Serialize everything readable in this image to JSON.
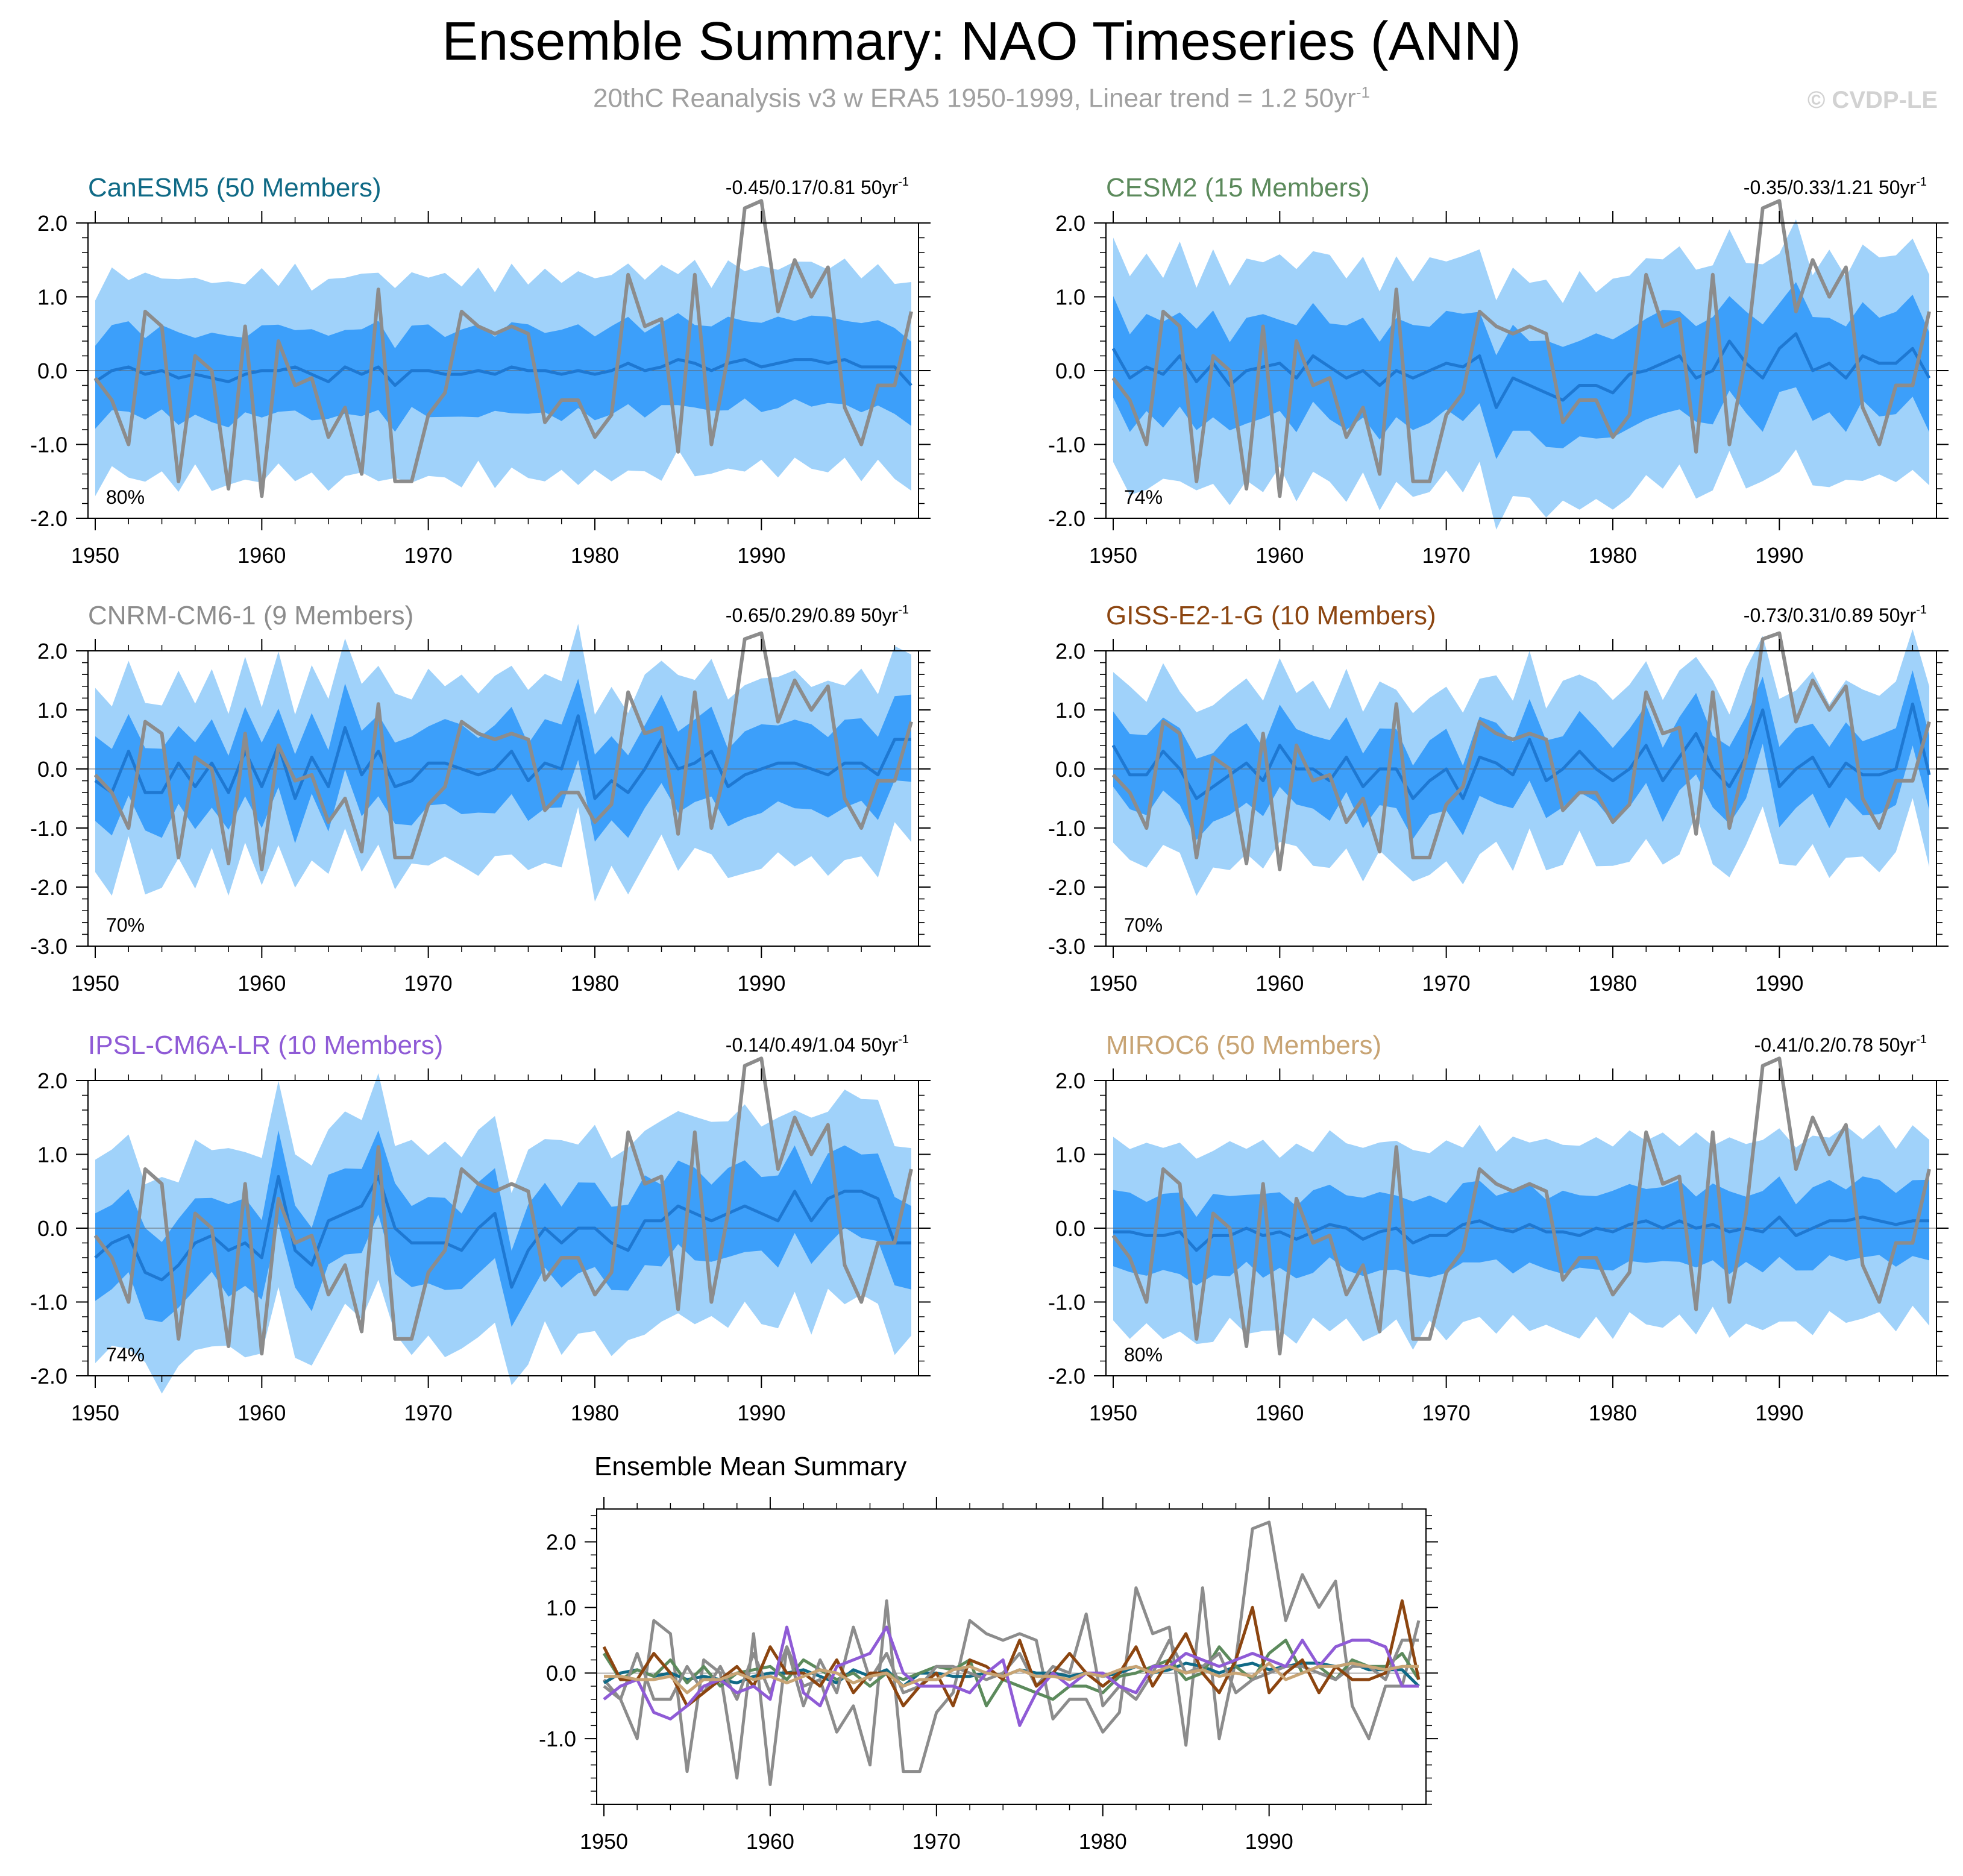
{
  "title": "Ensemble Summary: NAO Timeseries (ANN)",
  "subtitle": "20thC Reanalysis v3 w ERA5 1950-1999, Linear trend = 1.2 50yr",
  "subtitle_sup": "-1",
  "watermark": "© CVDP-LE",
  "unit_sup": "-1",
  "colors": {
    "obs": "#8c8c8c",
    "mean": "#1e78d2",
    "band_outer": "#a0d2fa",
    "band_inner": "#3c9ffa",
    "CanESM5": "#106a86",
    "CESM2": "#5c8a5c",
    "CNRM-CM6-1": "#8c8c8c",
    "GISS-E2-1-G": "#8c4510",
    "IPSL-CM6A-LR": "#8f5bd6",
    "MIROC6": "#c8a474"
  },
  "chart_data": [
    {
      "type": "line",
      "title": "CanESM5 (50 Members)",
      "model": "CanESM5",
      "trend_label": "-0.45/0.17/0.81 50yr",
      "percent_label": "80%",
      "ylim": [
        -2.0,
        2.0
      ],
      "yticks": [
        -2.0,
        -1.0,
        0.0,
        1.0,
        2.0
      ],
      "xticks": [
        1950,
        1960,
        1970,
        1980,
        1990
      ],
      "xlim": [
        1950,
        1999
      ],
      "series": [
        {
          "name": "ensemble mean",
          "x_start": 1950,
          "values": [
            -0.15,
            0.0,
            0.05,
            -0.05,
            0.0,
            -0.1,
            -0.05,
            -0.1,
            -0.15,
            -0.05,
            0.0,
            0.0,
            0.05,
            -0.05,
            -0.15,
            0.05,
            -0.05,
            0.05,
            -0.2,
            0.0,
            0.0,
            -0.05,
            -0.05,
            0.0,
            -0.05,
            0.05,
            0.0,
            0.0,
            -0.05,
            0.0,
            -0.05,
            0.0,
            0.1,
            0.0,
            0.05,
            0.15,
            0.1,
            0.0,
            0.1,
            0.15,
            0.05,
            0.1,
            0.15,
            0.15,
            0.1,
            0.15,
            0.05,
            0.05,
            0.05,
            -0.2
          ]
        }
      ]
    },
    {
      "type": "line",
      "title": "CESM2 (15 Members)",
      "model": "CESM2",
      "trend_label": "-0.35/0.33/1.21 50yr",
      "percent_label": "74%",
      "ylim": [
        -2.0,
        2.0
      ],
      "yticks": [
        -2.0,
        -1.0,
        0.0,
        1.0,
        2.0
      ],
      "xticks": [
        1950,
        1960,
        1970,
        1980,
        1990
      ],
      "xlim": [
        1950,
        1999
      ],
      "series": [
        {
          "name": "ensemble mean",
          "x_start": 1950,
          "values": [
            0.3,
            -0.1,
            0.05,
            -0.05,
            0.2,
            -0.15,
            0.1,
            -0.2,
            0.0,
            0.05,
            0.1,
            -0.1,
            0.2,
            0.05,
            -0.1,
            0.0,
            -0.2,
            0.0,
            -0.1,
            0.0,
            0.1,
            0.05,
            0.2,
            -0.5,
            -0.1,
            -0.2,
            -0.3,
            -0.4,
            -0.2,
            -0.2,
            -0.3,
            -0.05,
            0.0,
            0.1,
            0.2,
            -0.1,
            0.0,
            0.4,
            0.1,
            -0.1,
            0.3,
            0.5,
            0.0,
            0.1,
            -0.1,
            0.2,
            0.1,
            0.1,
            0.3,
            -0.1
          ]
        }
      ]
    },
    {
      "type": "line",
      "title": "CNRM-CM6-1 (9 Members)",
      "model": "CNRM-CM6-1",
      "trend_label": "-0.65/0.29/0.89 50yr",
      "percent_label": "70%",
      "ylim": [
        -3.0,
        2.0
      ],
      "yticks": [
        -3.0,
        -2.0,
        -1.0,
        0.0,
        1.0,
        2.0
      ],
      "xticks": [
        1950,
        1960,
        1970,
        1980,
        1990
      ],
      "xlim": [
        1950,
        1999
      ],
      "series": [
        {
          "name": "ensemble mean",
          "x_start": 1950,
          "values": [
            -0.2,
            -0.4,
            0.3,
            -0.4,
            -0.4,
            0.1,
            -0.3,
            0.1,
            -0.4,
            0.3,
            -0.3,
            0.4,
            -0.5,
            0.2,
            -0.3,
            0.7,
            -0.1,
            0.3,
            -0.3,
            -0.2,
            0.1,
            0.1,
            0.0,
            -0.1,
            0.0,
            0.3,
            -0.2,
            0.1,
            0.0,
            0.9,
            -0.5,
            -0.2,
            -0.4,
            0.0,
            0.5,
            0.0,
            0.1,
            0.3,
            -0.3,
            -0.1,
            0.0,
            0.1,
            0.1,
            0.0,
            -0.1,
            0.1,
            0.1,
            -0.1,
            0.5,
            0.5
          ]
        }
      ]
    },
    {
      "type": "line",
      "title": "GISS-E2-1-G (10 Members)",
      "model": "GISS-E2-1-G",
      "trend_label": "-0.73/0.31/0.89 50yr",
      "percent_label": "70%",
      "ylim": [
        -3.0,
        2.0
      ],
      "yticks": [
        -3.0,
        -2.0,
        -1.0,
        0.0,
        1.0,
        2.0
      ],
      "xticks": [
        1950,
        1960,
        1970,
        1980,
        1990
      ],
      "xlim": [
        1950,
        1999
      ],
      "series": [
        {
          "name": "ensemble mean",
          "x_start": 1950,
          "values": [
            0.4,
            -0.1,
            -0.1,
            0.3,
            0.0,
            -0.5,
            -0.3,
            -0.1,
            0.1,
            -0.2,
            0.4,
            0.0,
            0.0,
            -0.2,
            0.2,
            -0.3,
            0.0,
            0.0,
            -0.5,
            -0.2,
            0.0,
            -0.5,
            0.2,
            0.1,
            -0.1,
            0.5,
            -0.2,
            0.0,
            0.3,
            0.0,
            -0.2,
            0.0,
            0.4,
            -0.2,
            0.2,
            0.6,
            0.0,
            -0.3,
            0.2,
            1.0,
            -0.3,
            0.0,
            0.2,
            -0.3,
            0.1,
            -0.1,
            -0.1,
            0.0,
            1.1,
            -0.1
          ]
        }
      ]
    },
    {
      "type": "line",
      "title": "IPSL-CM6A-LR (10 Members)",
      "model": "IPSL-CM6A-LR",
      "trend_label": "-0.14/0.49/1.04 50yr",
      "percent_label": "74%",
      "ylim": [
        -2.0,
        2.0
      ],
      "yticks": [
        -2.0,
        -1.0,
        0.0,
        1.0,
        2.0
      ],
      "xticks": [
        1950,
        1960,
        1970,
        1980,
        1990
      ],
      "xlim": [
        1950,
        1999
      ],
      "series": [
        {
          "name": "ensemble mean",
          "x_start": 1950,
          "values": [
            -0.4,
            -0.2,
            -0.1,
            -0.6,
            -0.7,
            -0.5,
            -0.2,
            -0.1,
            -0.3,
            -0.2,
            -0.4,
            0.7,
            -0.3,
            -0.5,
            0.1,
            0.2,
            0.3,
            0.7,
            0.0,
            -0.2,
            -0.2,
            -0.2,
            -0.3,
            0.0,
            0.2,
            -0.8,
            -0.3,
            0.0,
            -0.2,
            0.0,
            0.0,
            -0.2,
            -0.3,
            0.1,
            0.1,
            0.3,
            0.2,
            0.1,
            0.2,
            0.3,
            0.2,
            0.1,
            0.5,
            0.1,
            0.4,
            0.5,
            0.5,
            0.4,
            -0.2,
            -0.2
          ]
        }
      ]
    },
    {
      "type": "line",
      "title": "MIROC6 (50 Members)",
      "model": "MIROC6",
      "trend_label": "-0.41/0.2/0.78 50yr",
      "percent_label": "80%",
      "ylim": [
        -2.0,
        2.0
      ],
      "yticks": [
        -2.0,
        -1.0,
        0.0,
        1.0,
        2.0
      ],
      "xticks": [
        1950,
        1960,
        1970,
        1980,
        1990
      ],
      "xlim": [
        1950,
        1999
      ],
      "series": [
        {
          "name": "ensemble mean",
          "x_start": 1950,
          "values": [
            -0.05,
            -0.05,
            -0.1,
            -0.1,
            -0.05,
            -0.3,
            -0.1,
            -0.1,
            0.0,
            -0.1,
            -0.05,
            -0.15,
            -0.05,
            0.05,
            0.0,
            -0.15,
            -0.05,
            0.0,
            -0.2,
            -0.1,
            -0.1,
            0.05,
            0.1,
            0.0,
            -0.05,
            0.05,
            -0.05,
            -0.05,
            -0.1,
            0.0,
            -0.05,
            0.05,
            0.1,
            0.0,
            0.1,
            0.0,
            0.05,
            -0.05,
            0.0,
            -0.05,
            0.15,
            -0.1,
            0.0,
            0.1,
            0.1,
            0.15,
            0.1,
            0.05,
            0.1,
            0.1
          ]
        }
      ]
    },
    {
      "type": "line",
      "title": "Ensemble Mean Summary",
      "ylim": [
        -2.0,
        2.5
      ],
      "yticks": [
        -1.0,
        0.0,
        1.0,
        2.0
      ],
      "xticks": [
        1950,
        1960,
        1970,
        1980,
        1990
      ],
      "xlim": [
        1950,
        1999
      ],
      "series_names": [
        "Reanalysis",
        "CanESM5",
        "CESM2",
        "CNRM-CM6-1",
        "GISS-E2-1-G",
        "IPSL-CM6A-LR",
        "MIROC6"
      ]
    }
  ],
  "observations": {
    "name": "20thC Reanalysis v3 w ERA5",
    "x_start": 1950,
    "values": [
      -0.1,
      -0.4,
      -1.0,
      0.8,
      0.6,
      -1.5,
      0.2,
      0.0,
      -1.6,
      0.6,
      -1.7,
      0.4,
      -0.2,
      -0.1,
      -0.9,
      -0.5,
      -1.4,
      1.1,
      -1.5,
      -1.5,
      -0.6,
      -0.3,
      0.8,
      0.6,
      0.5,
      0.6,
      0.5,
      -0.7,
      -0.4,
      -0.4,
      -0.9,
      -0.6,
      1.3,
      0.6,
      0.7,
      -1.1,
      1.3,
      -1.0,
      0.2,
      2.2,
      2.3,
      0.8,
      1.5,
      1.0,
      1.4,
      -0.5,
      -1.0,
      -0.2,
      -0.2,
      0.8
    ]
  }
}
